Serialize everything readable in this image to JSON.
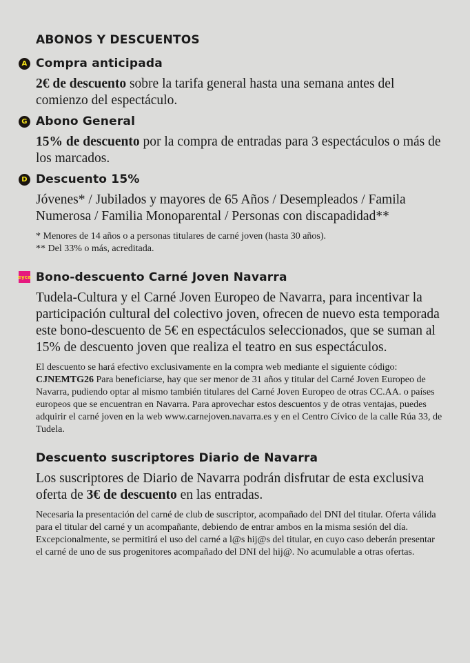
{
  "title": "ABONOS Y DESCUENTOS",
  "sections": [
    {
      "badge": "A",
      "heading": "Compra anticipada",
      "bold": "2€ de descuento",
      "text": " sobre la tarifa general hasta una semana antes del comienzo del espectáculo."
    },
    {
      "badge": "G",
      "heading": "Abono General",
      "bold": "15% de descuento",
      "text": " por la compra de entradas para 3 espectáculos o más de los marcados."
    },
    {
      "badge": "D",
      "heading": "Descuento 15%",
      "text": "Jóvenes* / Jubilados y mayores de 65 Años / Desempleados / Famila Numerosa / Familia Monoparental / Personas con discapadidad**",
      "note1": "* Menores de 14 años o a personas titulares de carné joven (hasta 30 años).",
      "note2": "** Del 33% o más, acreditada."
    }
  ],
  "carne": {
    "logo": "eyca",
    "heading": "Bono-descuento Carné Joven Navarra",
    "text": "Tudela-Cultura y el Carné Joven Europeo de Navarra, para incentivar la participación cultural del colectivo joven, ofrecen de nuevo esta temporada este bono-descuento de 5€ en espectáculos seleccionados, que se suman al 15% de descuento joven que realiza el teatro en sus espectáculos.",
    "small_pre": "El descuento se hará efectivo exclusivamente en la compra web mediante el siguiente código: ",
    "code": "CJNEMTG26",
    "small_post": "  Para beneficiarse, hay que ser menor de 31 años y titular del Carné Joven Europeo de Navarra, pudiendo optar al mismo también titulares del Carné Joven Europeo de otras CC.AA. o países europeos que se encuentran en Navarra.  Para aprovechar estos descuentos y de otras ventajas, puedes adquirir el carné joven en la web www.carnejoven.navarra.es y en el Centro Cívico de la calle Rúa 33, de Tudela."
  },
  "diario": {
    "heading": "Descuento suscriptores Diario de Navarra",
    "text_pre": "Los suscriptores de Diario de Navarra podrán disfrutar de esta exclusiva oferta de ",
    "bold": "3€ de descuento",
    "text_post": " en las entradas.",
    "small": "Necesaria la presentación del carné de club de suscriptor, acompañado del DNI del titular. Oferta válida para el titular del carné y un acompañante, debiendo de entrar ambos en la misma sesión del día. Excepcionalmente, se permitirá el uso del carné a l@s hij@s del titular, en cuyo caso deberán presentar el carné de uno de sus progenitores acompañado del DNI del hij@. No acumulable a otras ofertas."
  },
  "colors": {
    "background": "#dcdcda",
    "badge": "#1a1410",
    "badge_text": "#f5e21a",
    "eyca": "#e6197e"
  }
}
